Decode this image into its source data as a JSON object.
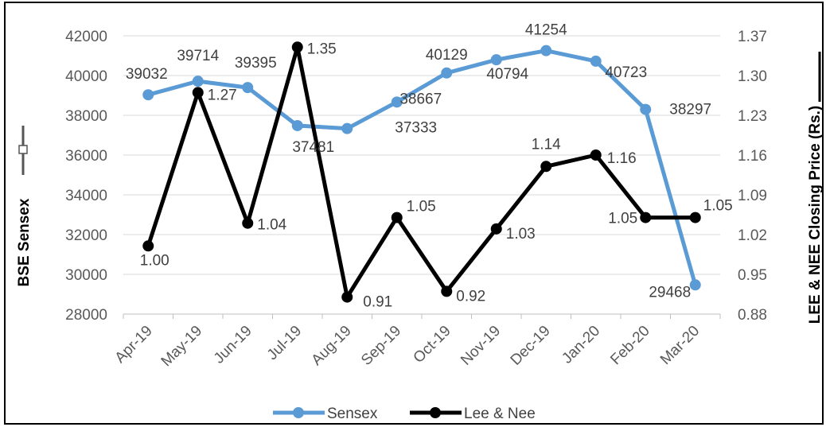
{
  "chart_data": {
    "type": "line",
    "categories": [
      "Apr-19",
      "May-19",
      "Jun-19",
      "Jul-19",
      "Aug-19",
      "Sep-19",
      "Oct-19",
      "Nov-19",
      "Dec-19",
      "Jan-20",
      "Feb-20",
      "Mar-20"
    ],
    "series": [
      {
        "name": "Sensex",
        "axis": "left",
        "color": "#5b9bd5",
        "values": [
          39032,
          39714,
          39395,
          37481,
          37333,
          38667,
          40129,
          40794,
          41254,
          40723,
          38297,
          29468
        ],
        "labels": [
          "39032",
          "39714",
          "39395",
          "37481",
          "37333",
          "38667",
          "40129",
          "40794",
          "41254",
          "40723",
          "38297",
          "29468"
        ]
      },
      {
        "name": "Lee & Nee",
        "axis": "right",
        "color": "#000000",
        "values": [
          1.0,
          1.27,
          1.04,
          1.35,
          0.91,
          1.05,
          0.92,
          1.03,
          1.14,
          1.16,
          1.05,
          1.05
        ],
        "labels": [
          "1.00",
          "1.27",
          "1.04",
          "1.35",
          "0.91",
          "1.05",
          "0.92",
          "1.03",
          "1.14",
          "1.16",
          "1.05",
          "1.05"
        ]
      }
    ],
    "ylabel": "BSE Sensex",
    "y2label": "LEE & NEE Closing Price (Rs.)",
    "ylim": [
      28000,
      42000
    ],
    "y2lim": [
      0.88,
      1.37
    ],
    "yticks": [
      "28000",
      "30000",
      "32000",
      "34000",
      "36000",
      "38000",
      "40000",
      "42000"
    ],
    "y2ticks": [
      "0.88",
      "0.95",
      "1.02",
      "1.09",
      "1.16",
      "1.23",
      "1.30",
      "1.37"
    ],
    "grid": true,
    "legend_position": "bottom"
  }
}
